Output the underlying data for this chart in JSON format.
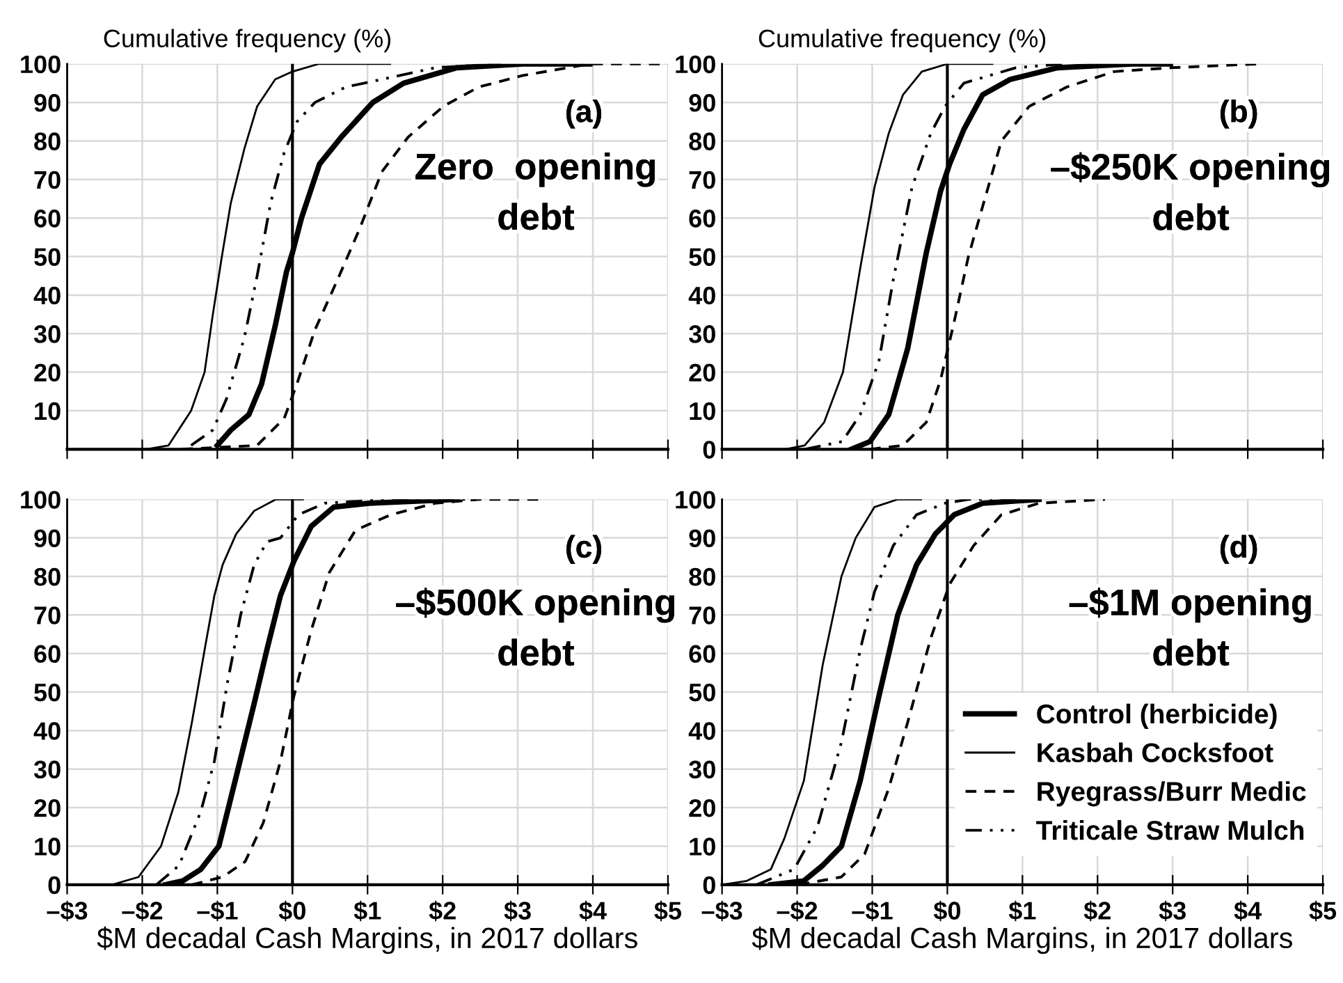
{
  "chart_data": [
    {
      "type": "line",
      "ylabel": "Cumulative frequency (%)",
      "annotations": [
        "(a)",
        "Zero  opening\ndebt"
      ],
      "xlim": [
        -3,
        5
      ],
      "ylim": [
        0,
        100
      ],
      "xticks": [
        {
          "value": -3,
          "label": null
        },
        {
          "value": -2,
          "label": null
        },
        {
          "value": -1,
          "label": null
        },
        {
          "value": 0,
          "label": null
        },
        {
          "value": 1,
          "label": null
        },
        {
          "value": 2,
          "label": null
        },
        {
          "value": 3,
          "label": null
        },
        {
          "value": 4,
          "label": null
        },
        {
          "value": 5,
          "label": null
        }
      ],
      "yticks": [
        {
          "value": 0,
          "label": null
        },
        10,
        20,
        30,
        40,
        50,
        60,
        70,
        80,
        90,
        100
      ],
      "grid": true,
      "tick_labels": "y",
      "ref_lines": [
        {
          "axis": "x",
          "value": 0,
          "color": "#000000"
        }
      ],
      "series": [
        {
          "color": "#000000",
          "line_style": "solid",
          "x": [
            -1.0,
            -0.82,
            -0.58,
            -0.41,
            -0.23,
            -0.08,
            0,
            0.12,
            0.36,
            0.65,
            1.07,
            1.48,
            2.19,
            3.07,
            3.96
          ],
          "values": [
            1,
            5,
            9,
            17,
            32,
            46,
            51,
            60,
            74,
            81,
            90,
            95,
            99,
            100,
            100
          ]
        },
        {
          "color": "#000000",
          "line_style": "solid",
          "x": [
            -1.95,
            -1.65,
            -1.35,
            -1.17,
            -1.06,
            -0.94,
            -0.82,
            -0.64,
            -0.47,
            -0.23,
            0,
            0.35,
            1.3
          ],
          "values": [
            0,
            1,
            10,
            20,
            35,
            50,
            64,
            78,
            89,
            96,
            98,
            100,
            100
          ]
        },
        {
          "color": "#000000",
          "line_style": "dashed",
          "x": [
            -1.47,
            -0.47,
            -0.11,
            0.06,
            0.3,
            0.6,
            0.89,
            1.19,
            1.54,
            2.01,
            2.48,
            3.07,
            3.96,
            5
          ],
          "values": [
            0,
            1,
            8,
            17,
            31,
            44,
            57,
            72,
            81,
            89,
            94,
            97,
            100,
            100
          ]
        },
        {
          "color": "#000000",
          "line_style": "dashdotdot",
          "x": [
            -1.35,
            -1.06,
            -0.88,
            -0.64,
            -0.47,
            -0.29,
            -0.11,
            0.06,
            0.3,
            0.71,
            1.19,
            1.9,
            2.78
          ],
          "values": [
            1,
            5,
            13,
            29,
            45,
            64,
            77,
            85,
            90,
            94,
            96,
            99,
            100
          ]
        }
      ]
    },
    {
      "type": "line",
      "ylabel": "Cumulative frequency (%)",
      "annotations": [
        "(b)",
        "–$250K opening\ndebt"
      ],
      "xlim": [
        -3,
        5
      ],
      "ylim": [
        0,
        100
      ],
      "xticks": [
        {
          "value": -3,
          "label": null
        },
        {
          "value": -2,
          "label": null
        },
        {
          "value": -1,
          "label": null
        },
        {
          "value": 0,
          "label": null
        },
        {
          "value": 1,
          "label": null
        },
        {
          "value": 2,
          "label": null
        },
        {
          "value": 3,
          "label": null
        },
        {
          "value": 4,
          "label": null
        },
        {
          "value": 5,
          "label": null
        }
      ],
      "yticks": [
        0,
        10,
        20,
        30,
        40,
        50,
        60,
        70,
        80,
        90,
        100
      ],
      "grid": true,
      "tick_labels": "y",
      "ref_lines": [
        {
          "axis": "x",
          "value": 0,
          "color": "#000000"
        }
      ],
      "series": [
        {
          "color": "#000000",
          "line_style": "solid",
          "x": [
            -1.28,
            -1.03,
            -0.78,
            -0.53,
            -0.28,
            -0.09,
            0.03,
            0.22,
            0.47,
            0.84,
            1.47,
            2.47,
            2.97
          ],
          "values": [
            0,
            2,
            9,
            26,
            51,
            67,
            74,
            83,
            92,
            96,
            99,
            100,
            100
          ]
        },
        {
          "color": "#000000",
          "line_style": "solid",
          "x": [
            -2.16,
            -1.9,
            -1.64,
            -1.39,
            -1.16,
            -0.97,
            -0.78,
            -0.59,
            -0.34,
            0,
            0.6
          ],
          "values": [
            0,
            1,
            7,
            20,
            47,
            68,
            82,
            92,
            98,
            100,
            100
          ]
        },
        {
          "color": "#000000",
          "line_style": "dashed",
          "x": [
            -1.03,
            -0.59,
            -0.28,
            -0.09,
            0.09,
            0.28,
            0.47,
            0.72,
            1.09,
            1.59,
            2.22,
            2.97,
            4.16
          ],
          "values": [
            0,
            1,
            7,
            18,
            33,
            50,
            63,
            80,
            89,
            94,
            98,
            99,
            100
          ]
        },
        {
          "color": "#000000",
          "line_style": "dashdotdot",
          "x": [
            -1.9,
            -1.4,
            -1.16,
            -0.91,
            -0.72,
            -0.47,
            -0.22,
            -0.03,
            0.22,
            0.91,
            1.53
          ],
          "values": [
            0,
            2,
            9,
            23,
            44,
            68,
            82,
            89,
            95,
            99,
            100
          ]
        }
      ]
    },
    {
      "type": "line",
      "xlabel": "$M decadal Cash Margins, in 2017 dollars",
      "annotations": [
        "(c)",
        "–$500K opening\ndebt"
      ],
      "xlim": [
        -3,
        5
      ],
      "ylim": [
        0,
        100
      ],
      "xticks": [
        {
          "value": -3,
          "label": "–$3"
        },
        {
          "value": -2,
          "label": "–$2"
        },
        {
          "value": -1,
          "label": "–$1"
        },
        {
          "value": 0,
          "label": "$0"
        },
        {
          "value": 1,
          "label": "$1"
        },
        {
          "value": 2,
          "label": "$2"
        },
        {
          "value": 3,
          "label": "$3"
        },
        {
          "value": 4,
          "label": "$4"
        },
        {
          "value": 5,
          "label": "$5"
        }
      ],
      "yticks": [
        0,
        10,
        20,
        30,
        40,
        50,
        60,
        70,
        80,
        90,
        100
      ],
      "grid": true,
      "ref_lines": [
        {
          "axis": "x",
          "value": 0,
          "color": "#000000"
        }
      ],
      "series": [
        {
          "color": "#000000",
          "line_style": "solid",
          "x": [
            -1.69,
            -1.46,
            -1.22,
            -0.98,
            -0.75,
            -0.51,
            -0.34,
            -0.16,
            0.02,
            0.25,
            0.55,
            1.02,
            2.2
          ],
          "values": [
            0,
            1,
            4,
            10,
            28,
            47,
            61,
            75,
            84,
            93,
            98,
            99,
            100
          ]
        },
        {
          "color": "#000000",
          "line_style": "solid",
          "x": [
            -2.4,
            -2.05,
            -1.75,
            -1.52,
            -1.34,
            -1.16,
            -1.04,
            -0.93,
            -0.75,
            -0.51,
            -0.22,
            0.14
          ],
          "values": [
            0,
            2,
            10,
            24,
            42,
            62,
            75,
            83,
            91,
            97,
            100,
            100
          ]
        },
        {
          "color": "#000000",
          "line_style": "dashed",
          "x": [
            -1.34,
            -0.93,
            -0.63,
            -0.39,
            -0.16,
            0.02,
            0.25,
            0.49,
            0.84,
            1.31,
            1.9,
            2.49,
            3.35
          ],
          "values": [
            0,
            2,
            6,
            16,
            32,
            49,
            66,
            81,
            92,
            96,
            99,
            100,
            100
          ]
        },
        {
          "color": "#000000",
          "line_style": "dashdotdot",
          "x": [
            -1.81,
            -1.51,
            -1.22,
            -1.04,
            -0.87,
            -0.69,
            -0.51,
            -0.34,
            -0.16,
            0.08,
            0.43,
            1.31,
            2.49
          ],
          "values": [
            0,
            5,
            19,
            32,
            52,
            70,
            83,
            89,
            90,
            96,
            99,
            100,
            100
          ]
        }
      ]
    },
    {
      "type": "line",
      "xlabel": "$M decadal Cash Margins, in 2017 dollars",
      "annotations": [
        "(d)",
        "–$1M opening\ndebt"
      ],
      "xlim": [
        -3,
        5
      ],
      "ylim": [
        0,
        100
      ],
      "xticks": [
        {
          "value": -3,
          "label": "–$3"
        },
        {
          "value": -2,
          "label": "–$2"
        },
        {
          "value": -1,
          "label": "–$1"
        },
        {
          "value": 0,
          "label": "$0"
        },
        {
          "value": 1,
          "label": "$1"
        },
        {
          "value": 2,
          "label": "$2"
        },
        {
          "value": 3,
          "label": "$3"
        },
        {
          "value": 4,
          "label": "$4"
        },
        {
          "value": 5,
          "label": "$5"
        }
      ],
      "yticks": [
        0,
        10,
        20,
        30,
        40,
        50,
        60,
        70,
        80,
        90,
        100
      ],
      "grid": true,
      "legend": "bottom right",
      "ref_lines": [
        {
          "axis": "x",
          "value": 0,
          "color": "#000000"
        }
      ],
      "series": [
        {
          "name": "Control (herbicide)",
          "color": "#000000",
          "line_style": "solid",
          "x": [
            -2.35,
            -1.91,
            -1.66,
            -1.41,
            -1.16,
            -0.91,
            -0.66,
            -0.41,
            -0.16,
            0.09,
            0.47,
            1.22
          ],
          "values": [
            0,
            1,
            5,
            10,
            27,
            49,
            70,
            83,
            91,
            96,
            99,
            100
          ]
        },
        {
          "name": "Kasbah Cocksfoot",
          "color": "#000000",
          "line_style": "solid",
          "x": [
            -3,
            -2.67,
            -2.35,
            -2.17,
            -1.91,
            -1.66,
            -1.41,
            -1.22,
            -0.97,
            -0.66,
            -0.35
          ],
          "values": [
            0,
            1,
            4,
            12,
            27,
            57,
            80,
            90,
            98,
            100,
            100
          ]
        },
        {
          "name": "Ryegrass/Burr Medic",
          "color": "#000000",
          "line_style": "dashed",
          "x": [
            -1.98,
            -1.41,
            -1.1,
            -0.78,
            -0.53,
            -0.22,
            0.03,
            0.35,
            0.72,
            1.22,
            2.1
          ],
          "values": [
            0,
            2,
            8,
            25,
            42,
            64,
            78,
            88,
            96,
            99,
            100
          ]
        },
        {
          "name": "Triticale Straw Mulch",
          "color": "#000000",
          "line_style": "dashdotdot",
          "x": [
            -2.54,
            -2.04,
            -1.73,
            -1.41,
            -1.16,
            -0.97,
            -0.72,
            -0.41,
            -0.03,
            0.28,
            0.91
          ],
          "values": [
            0,
            4,
            15,
            37,
            61,
            76,
            88,
            96,
            99,
            100,
            100
          ]
        }
      ]
    }
  ]
}
